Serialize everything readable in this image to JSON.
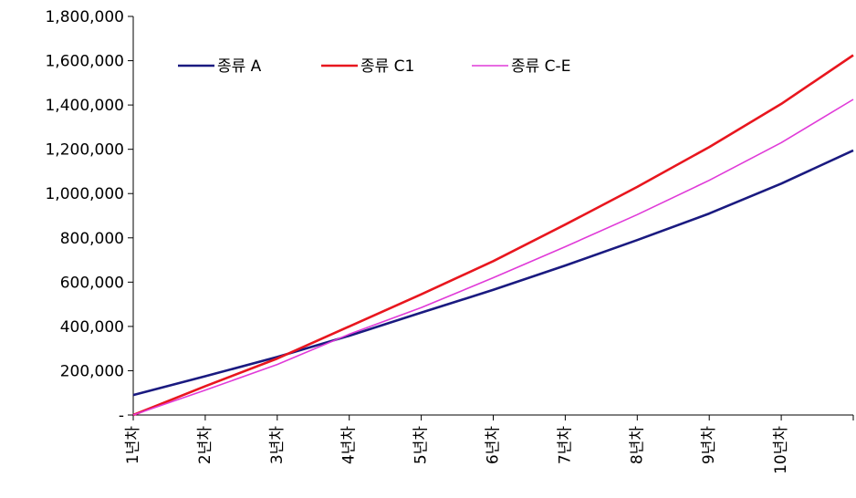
{
  "chart_data": {
    "type": "line",
    "title": "",
    "xlabel": "",
    "ylabel": "",
    "categories": [
      "1년차",
      "2년차",
      "3년차",
      "4년차",
      "5년차",
      "6년차",
      "7년차",
      "8년차",
      "9년차",
      "10년차",
      ""
    ],
    "x_tick_labels": [
      "1년차",
      "2년차",
      "3년차",
      "4년차",
      "5년차",
      "6년차",
      "7년차",
      "8년차",
      "9년차",
      "10년차"
    ],
    "y_tick_labels": [
      "-",
      "200,000",
      "400,000",
      "600,000",
      "800,000",
      "1,000,000",
      "1,200,000",
      "1,400,000",
      "1,600,000",
      "1,800,000"
    ],
    "ylim": [
      0,
      1800000
    ],
    "y_tick_step": 200000,
    "grid": false,
    "legend_position": "top-left",
    "series": [
      {
        "name": "종류 A",
        "color": "#1a1a80",
        "values": [
          90000,
          175000,
          262000,
          358000,
          462000,
          565000,
          675000,
          790000,
          910000,
          1045000,
          1195000
        ]
      },
      {
        "name": "종류 C1",
        "color": "#e8161e",
        "values": [
          0,
          130000,
          255000,
          400000,
          545000,
          695000,
          860000,
          1030000,
          1210000,
          1405000,
          1625000
        ]
      },
      {
        "name": "종류 C-E",
        "color": "#e03ad8",
        "values": [
          0,
          112000,
          228000,
          365000,
          485000,
          620000,
          760000,
          905000,
          1060000,
          1230000,
          1425000
        ]
      }
    ]
  }
}
